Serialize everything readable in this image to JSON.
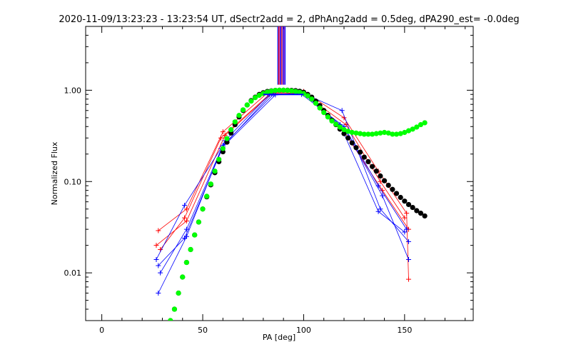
{
  "chart_data": {
    "type": "line",
    "title": "2020-11-09/13:23:23 - 13:23:54 UT, dSectr2add = 2, dPhAng2add = 0.5deg, dPA290_est= -0.0deg",
    "xlabel": "PA [deg]",
    "ylabel": "Normalized Flux",
    "xlim": [
      -8,
      184
    ],
    "ylim": [
      0.003,
      5.0
    ],
    "yscale": "log",
    "x_ticks": [
      0,
      50,
      100,
      150
    ],
    "x_tick_labels": [
      "0",
      "50",
      "100",
      "150"
    ],
    "y_ticks": [
      0.01,
      0.1,
      1.0
    ],
    "y_tick_labels": [
      "0.01",
      "0.10",
      "1.00"
    ],
    "grid": false,
    "legend": "none",
    "series": [
      {
        "color": "#ff0000",
        "marker": "plus",
        "x": [
          28,
          42,
          60,
          82,
          100,
          120,
          137,
          151,
          152
        ],
        "y": [
          0.029,
          0.05,
          0.35,
          0.93,
          0.97,
          0.5,
          0.13,
          0.045,
          0.0085
        ]
      },
      {
        "color": "#ff0000",
        "marker": "plus",
        "x": [
          29,
          41,
          59,
          83,
          99,
          121,
          138,
          150
        ],
        "y": [
          0.018,
          0.04,
          0.3,
          0.9,
          0.95,
          0.42,
          0.1,
          0.04
        ]
      },
      {
        "color": "#ff0000",
        "marker": "plus",
        "x": [
          27,
          42,
          61,
          84,
          100,
          119,
          139,
          152
        ],
        "y": [
          0.02,
          0.037,
          0.32,
          0.92,
          0.93,
          0.38,
          0.08,
          0.03
        ]
      },
      {
        "color": "#0000ff",
        "marker": "plus",
        "x": [
          28,
          42,
          60,
          85,
          100,
          119,
          138,
          152
        ],
        "y": [
          0.006,
          0.025,
          0.25,
          0.9,
          0.92,
          0.6,
          0.05,
          0.022
        ]
      },
      {
        "color": "#0000ff",
        "marker": "plus",
        "x": [
          27,
          41,
          59,
          84,
          99,
          120,
          137,
          151
        ],
        "y": [
          0.014,
          0.055,
          0.23,
          0.91,
          0.9,
          0.4,
          0.09,
          0.03
        ]
      },
      {
        "color": "#0000ff",
        "marker": "plus",
        "x": [
          29,
          42,
          61,
          83,
          101,
          121,
          139,
          152
        ],
        "y": [
          0.01,
          0.03,
          0.28,
          0.9,
          0.9,
          0.35,
          0.07,
          0.014
        ]
      },
      {
        "color": "#0000ff",
        "marker": "plus",
        "x": [
          28,
          41,
          60,
          86,
          100,
          118,
          137,
          150
        ],
        "y": [
          0.012,
          0.024,
          0.24,
          0.89,
          0.91,
          0.42,
          0.047,
          0.028
        ]
      },
      {
        "color": "#000000",
        "marker": "dot",
        "x": [
          34,
          36,
          38,
          40,
          42,
          44,
          46,
          48,
          50,
          52,
          54,
          56,
          58,
          60,
          62,
          64,
          66,
          68,
          70,
          72,
          74,
          76,
          78,
          80,
          82,
          84,
          86,
          88,
          90,
          92,
          94,
          96,
          98,
          100,
          102,
          104,
          106,
          108,
          110,
          112,
          114,
          116,
          118,
          120,
          122,
          124,
          126,
          128,
          130,
          132,
          134,
          136,
          138,
          140,
          142,
          144,
          146,
          148,
          150,
          152,
          154,
          156,
          158,
          160
        ],
        "y": [
          0.003,
          0.004,
          0.006,
          0.009,
          0.013,
          0.018,
          0.026,
          0.036,
          0.05,
          0.068,
          0.092,
          0.125,
          0.165,
          0.212,
          0.27,
          0.34,
          0.42,
          0.51,
          0.6,
          0.69,
          0.77,
          0.84,
          0.9,
          0.94,
          0.97,
          0.985,
          0.995,
          1.0,
          1.0,
          1.0,
          0.995,
          0.99,
          0.975,
          0.95,
          0.9,
          0.84,
          0.76,
          0.68,
          0.6,
          0.53,
          0.47,
          0.42,
          0.375,
          0.335,
          0.3,
          0.265,
          0.235,
          0.21,
          0.185,
          0.165,
          0.146,
          0.13,
          0.115,
          0.102,
          0.091,
          0.082,
          0.074,
          0.067,
          0.061,
          0.056,
          0.052,
          0.048,
          0.045,
          0.042
        ]
      },
      {
        "color": "#00ff00",
        "marker": "dot",
        "x": [
          34,
          36,
          38,
          40,
          42,
          44,
          46,
          48,
          50,
          52,
          54,
          56,
          58,
          60,
          62,
          64,
          66,
          68,
          70,
          72,
          74,
          76,
          78,
          80,
          82,
          84,
          86,
          88,
          90,
          92,
          94,
          96,
          98,
          100,
          102,
          104,
          106,
          108,
          110,
          112,
          114,
          116,
          118,
          120,
          122,
          124,
          126,
          128,
          130,
          132,
          134,
          136,
          138,
          140,
          142,
          144,
          146,
          148,
          150,
          152,
          154,
          156,
          158,
          160
        ],
        "y": [
          0.003,
          0.004,
          0.006,
          0.009,
          0.013,
          0.018,
          0.026,
          0.036,
          0.05,
          0.069,
          0.094,
          0.13,
          0.175,
          0.23,
          0.295,
          0.37,
          0.45,
          0.53,
          0.61,
          0.69,
          0.76,
          0.83,
          0.88,
          0.92,
          0.955,
          0.98,
          0.995,
          1.0,
          1.0,
          0.995,
          0.985,
          0.97,
          0.95,
          0.92,
          0.87,
          0.8,
          0.72,
          0.64,
          0.57,
          0.51,
          0.46,
          0.425,
          0.395,
          0.37,
          0.355,
          0.345,
          0.34,
          0.335,
          0.33,
          0.33,
          0.33,
          0.335,
          0.34,
          0.345,
          0.34,
          0.33,
          0.33,
          0.335,
          0.345,
          0.36,
          0.375,
          0.395,
          0.42,
          0.44
        ]
      }
    ],
    "vertical_bars": {
      "colors": [
        "#0000ff",
        "#ff0000",
        "#8000c0",
        "#0000ff",
        "#ff0000",
        "#0000ff",
        "#8000c0",
        "#0000ff"
      ],
      "x": [
        87.2,
        87.7,
        88.2,
        88.7,
        89.2,
        89.8,
        90.3,
        90.8
      ],
      "y_bottom": 1.15
    },
    "baseline_segment": {
      "color": "#0000ff",
      "x": [
        80,
        100
      ],
      "y": [
        0.9,
        0.9
      ]
    }
  }
}
